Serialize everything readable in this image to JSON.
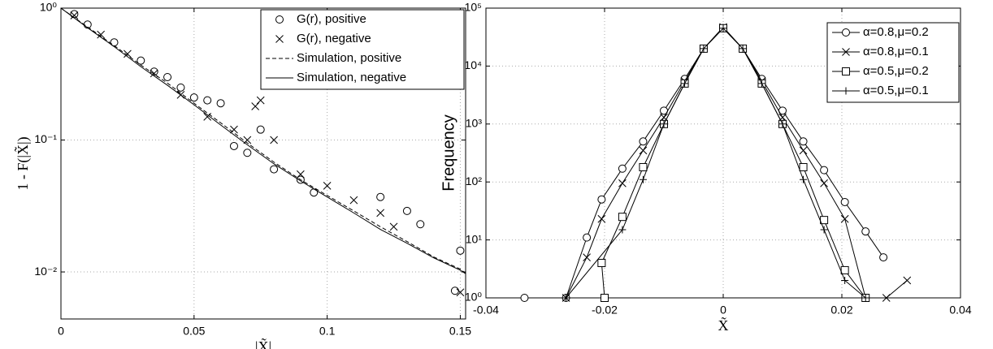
{
  "chart_data": [
    {
      "type": "line",
      "xlabel": "|X̃|",
      "ylabel": "1 - F(|X̃|)",
      "yscale": "log",
      "grid": true,
      "legend": "upper right",
      "xlim": [
        0,
        0.152
      ],
      "xticks": [
        0,
        0.05,
        0.1,
        0.15
      ],
      "ylim": [
        0.0044,
        1
      ],
      "yticks": [
        {
          "value": 0.01,
          "label": "10⁻²"
        },
        {
          "value": 0.1,
          "label": "10⁻¹"
        },
        {
          "value": 1,
          "label": "10⁰"
        }
      ],
      "series": [
        {
          "name": "G(r), positive",
          "color": "#000000",
          "marker": "o",
          "line": "none",
          "x": [
            0.005,
            0.01,
            0.02,
            0.03,
            0.035,
            0.04,
            0.045,
            0.05,
            0.055,
            0.06,
            0.065,
            0.07,
            0.075,
            0.08,
            0.09,
            0.095,
            0.12,
            0.13,
            0.135,
            0.15,
            0.148
          ],
          "values": [
            0.9,
            0.75,
            0.55,
            0.4,
            0.33,
            0.3,
            0.25,
            0.21,
            0.2,
            0.19,
            0.09,
            0.08,
            0.12,
            0.06,
            0.05,
            0.04,
            0.037,
            0.029,
            0.023,
            0.0145,
            0.0072
          ]
        },
        {
          "name": "G(r), negative",
          "color": "#000000",
          "marker": "x",
          "line": "none",
          "x": [
            0.005,
            0.015,
            0.025,
            0.035,
            0.045,
            0.055,
            0.065,
            0.07,
            0.073,
            0.075,
            0.08,
            0.09,
            0.1,
            0.11,
            0.12,
            0.125,
            0.15
          ],
          "values": [
            0.88,
            0.63,
            0.45,
            0.32,
            0.22,
            0.15,
            0.12,
            0.1,
            0.18,
            0.2,
            0.1,
            0.055,
            0.045,
            0.035,
            0.028,
            0.022,
            0.007
          ]
        },
        {
          "name": "Simulation, positive",
          "color": "#000000",
          "marker": null,
          "line": "dashed",
          "x": [
            0,
            0.01,
            0.02,
            0.03,
            0.04,
            0.05,
            0.06,
            0.07,
            0.08,
            0.09,
            0.1,
            0.11,
            0.12,
            0.13,
            0.14,
            0.15,
            0.152
          ],
          "values": [
            1,
            0.72,
            0.52,
            0.37,
            0.27,
            0.19,
            0.135,
            0.095,
            0.068,
            0.05,
            0.038,
            0.029,
            0.022,
            0.017,
            0.013,
            0.0105,
            0.0098
          ]
        },
        {
          "name": "Simulation, negative",
          "color": "#000000",
          "marker": null,
          "line": "solid",
          "x": [
            0,
            0.01,
            0.02,
            0.03,
            0.04,
            0.05,
            0.06,
            0.07,
            0.08,
            0.09,
            0.1,
            0.11,
            0.12,
            0.13,
            0.14,
            0.15,
            0.152
          ],
          "values": [
            1,
            0.71,
            0.51,
            0.36,
            0.26,
            0.185,
            0.13,
            0.092,
            0.066,
            0.049,
            0.037,
            0.028,
            0.021,
            0.0165,
            0.0128,
            0.0103,
            0.0097
          ]
        }
      ]
    },
    {
      "type": "line",
      "xlabel": "X̃",
      "ylabel": "Frequency",
      "yscale": "log",
      "grid": true,
      "legend": "upper right",
      "xlim": [
        -0.04,
        0.04
      ],
      "xticks": [
        -0.04,
        -0.02,
        0,
        0.02,
        0.04
      ],
      "ylim": [
        1,
        100000
      ],
      "yticks": [
        {
          "value": 1,
          "label": "10⁰"
        },
        {
          "value": 10,
          "label": "10¹"
        },
        {
          "value": 100,
          "label": "10²"
        },
        {
          "value": 1000,
          "label": "10³"
        },
        {
          "value": 10000,
          "label": "10⁴"
        },
        {
          "value": 100000,
          "label": "10⁵"
        }
      ],
      "series": [
        {
          "name": "α=0.8,μ=0.2",
          "color": "#000000",
          "marker": "o",
          "line": "solid",
          "x": [
            -0.0335,
            -0.0265,
            -0.023,
            -0.0205,
            -0.017,
            -0.0135,
            -0.01,
            -0.0065,
            -0.0033,
            0,
            0.0033,
            0.0065,
            0.01,
            0.0135,
            0.017,
            0.0205,
            0.024,
            0.027
          ],
          "values": [
            1,
            1,
            11,
            50,
            170,
            500,
            1700,
            6000,
            20000,
            45000,
            20000,
            6000,
            1700,
            500,
            160,
            45,
            14,
            5
          ]
        },
        {
          "name": "α=0.8,μ=0.1",
          "color": "#000000",
          "marker": "x",
          "line": "solid",
          "x": [
            -0.0265,
            -0.023,
            -0.0205,
            -0.017,
            -0.0135,
            -0.01,
            -0.0065,
            -0.0033,
            0,
            0.0033,
            0.0065,
            0.01,
            0.0135,
            0.017,
            0.0205,
            0.024,
            0.0275,
            0.031
          ],
          "values": [
            1,
            5,
            23,
            95,
            350,
            1300,
            5500,
            20000,
            47000,
            20000,
            5500,
            1300,
            350,
            95,
            23,
            1,
            1,
            2
          ]
        },
        {
          "name": "α=0.5,μ=0.2",
          "color": "#000000",
          "marker": "s",
          "line": "solid",
          "x": [
            -0.02,
            -0.0205,
            -0.017,
            -0.0135,
            -0.01,
            -0.0065,
            -0.0033,
            0,
            0.0033,
            0.0065,
            0.01,
            0.0135,
            0.017,
            0.0205,
            0.024
          ],
          "values": [
            1,
            4,
            25,
            180,
            1000,
            5000,
            20000,
            45000,
            20000,
            5000,
            1000,
            180,
            22,
            3,
            1
          ]
        },
        {
          "name": "α=0.5,μ=0.1",
          "color": "#000000",
          "marker": "+",
          "line": "solid",
          "x": [
            -0.0265,
            -0.017,
            -0.0135,
            -0.01,
            -0.0065,
            -0.0033,
            0,
            0.0033,
            0.0065,
            0.01,
            0.0135,
            0.017,
            0.0205,
            0.024
          ],
          "values": [
            1,
            15,
            110,
            1000,
            5000,
            20000,
            45000,
            20000,
            5000,
            1000,
            110,
            15,
            2,
            1
          ]
        }
      ]
    }
  ]
}
